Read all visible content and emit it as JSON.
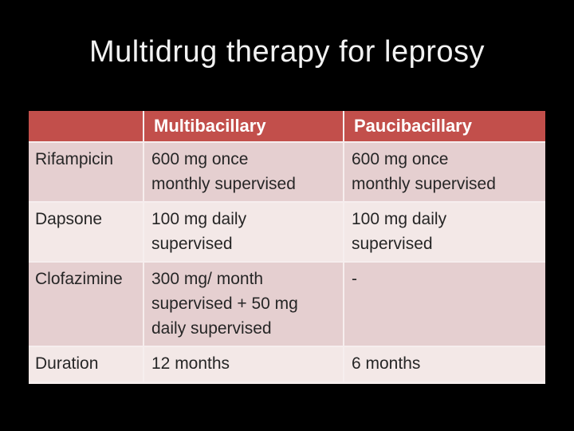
{
  "slide": {
    "title": "Multidrug therapy for leprosy"
  },
  "table": {
    "columns": [
      "",
      "Multibacillary",
      "Paucibacillary"
    ],
    "rows": [
      {
        "label": "Rifampicin",
        "multibacillary": "600 mg once\nmonthly supervised",
        "paucibacillary": "600 mg once\nmonthly supervised"
      },
      {
        "label": "Dapsone",
        "multibacillary": "100 mg daily\nsupervised",
        "paucibacillary": "100 mg daily\nsupervised"
      },
      {
        "label": "Clofazimine",
        "multibacillary": "300 mg/ month\nsupervised + 50 mg\ndaily supervised",
        "paucibacillary": "-"
      },
      {
        "label": "Duration",
        "multibacillary": "12 months",
        "paucibacillary": "6 months"
      }
    ]
  },
  "colors": {
    "background": "#000000",
    "title": "#f2f2f2",
    "header_bg": "#c24f4b",
    "band_dark": "#e5cfd0",
    "band_light": "#f3e8e7",
    "text": "#262626",
    "grid": "#f6eeee"
  }
}
